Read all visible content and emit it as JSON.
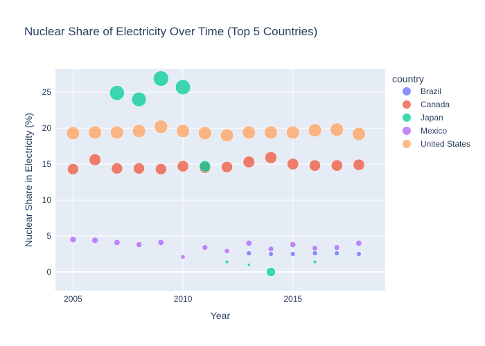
{
  "chart_data": {
    "type": "scatter",
    "title": "Nuclear Share of Electricity Over Time (Top 5 Countries)",
    "xlabel": "Year",
    "ylabel": "Nuclear Share in Electricity (%)",
    "xlim": [
      2004.2,
      2019.2
    ],
    "ylim": [
      -2.6,
      28.2
    ],
    "x_ticks": [
      2005,
      2010,
      2015
    ],
    "y_ticks": [
      0,
      5,
      10,
      15,
      20,
      25
    ],
    "grid": true,
    "legend_title": "country",
    "legend_position": "right",
    "size_encodes": "y value",
    "series": [
      {
        "name": "Brazil",
        "color": "#636efa",
        "points": [
          {
            "x": 2013,
            "y": 2.6
          },
          {
            "x": 2014,
            "y": 2.5
          },
          {
            "x": 2015,
            "y": 2.5
          },
          {
            "x": 2016,
            "y": 2.6
          },
          {
            "x": 2017,
            "y": 2.6
          },
          {
            "x": 2018,
            "y": 2.5
          }
        ]
      },
      {
        "name": "Canada",
        "color": "#ef553b",
        "points": [
          {
            "x": 2005,
            "y": 14.3
          },
          {
            "x": 2006,
            "y": 15.6
          },
          {
            "x": 2007,
            "y": 14.4
          },
          {
            "x": 2008,
            "y": 14.4
          },
          {
            "x": 2009,
            "y": 14.3
          },
          {
            "x": 2010,
            "y": 14.7
          },
          {
            "x": 2011,
            "y": 14.5
          },
          {
            "x": 2012,
            "y": 14.6
          },
          {
            "x": 2013,
            "y": 15.3
          },
          {
            "x": 2014,
            "y": 15.9
          },
          {
            "x": 2015,
            "y": 15.0
          },
          {
            "x": 2016,
            "y": 14.8
          },
          {
            "x": 2017,
            "y": 14.8
          },
          {
            "x": 2018,
            "y": 14.9
          }
        ]
      },
      {
        "name": "Japan",
        "color": "#00cc96",
        "points": [
          {
            "x": 2007,
            "y": 24.9
          },
          {
            "x": 2008,
            "y": 24.0
          },
          {
            "x": 2009,
            "y": 26.9
          },
          {
            "x": 2010,
            "y": 25.7
          },
          {
            "x": 2011,
            "y": 14.7
          },
          {
            "x": 2012,
            "y": 1.4
          },
          {
            "x": 2013,
            "y": 1.0
          },
          {
            "x": 2014,
            "y": 0.0
          },
          {
            "x": 2016,
            "y": 1.4
          }
        ]
      },
      {
        "name": "Mexico",
        "color": "#ab63fa",
        "points": [
          {
            "x": 2005,
            "y": 4.5
          },
          {
            "x": 2006,
            "y": 4.4
          },
          {
            "x": 2007,
            "y": 4.1
          },
          {
            "x": 2008,
            "y": 3.8
          },
          {
            "x": 2009,
            "y": 4.1
          },
          {
            "x": 2010,
            "y": 2.1
          },
          {
            "x": 2011,
            "y": 3.4
          },
          {
            "x": 2012,
            "y": 2.9
          },
          {
            "x": 2013,
            "y": 4.0
          },
          {
            "x": 2014,
            "y": 3.2
          },
          {
            "x": 2015,
            "y": 3.8
          },
          {
            "x": 2016,
            "y": 3.3
          },
          {
            "x": 2017,
            "y": 3.4
          },
          {
            "x": 2018,
            "y": 4.0
          }
        ]
      },
      {
        "name": "United States",
        "color": "#ffa15a",
        "points": [
          {
            "x": 2005,
            "y": 19.3
          },
          {
            "x": 2006,
            "y": 19.4
          },
          {
            "x": 2007,
            "y": 19.4
          },
          {
            "x": 2008,
            "y": 19.6
          },
          {
            "x": 2009,
            "y": 20.2
          },
          {
            "x": 2010,
            "y": 19.6
          },
          {
            "x": 2011,
            "y": 19.3
          },
          {
            "x": 2012,
            "y": 19.0
          },
          {
            "x": 2013,
            "y": 19.4
          },
          {
            "x": 2014,
            "y": 19.4
          },
          {
            "x": 2015,
            "y": 19.4
          },
          {
            "x": 2016,
            "y": 19.7
          },
          {
            "x": 2017,
            "y": 19.8
          },
          {
            "x": 2018,
            "y": 19.2
          }
        ]
      }
    ]
  }
}
